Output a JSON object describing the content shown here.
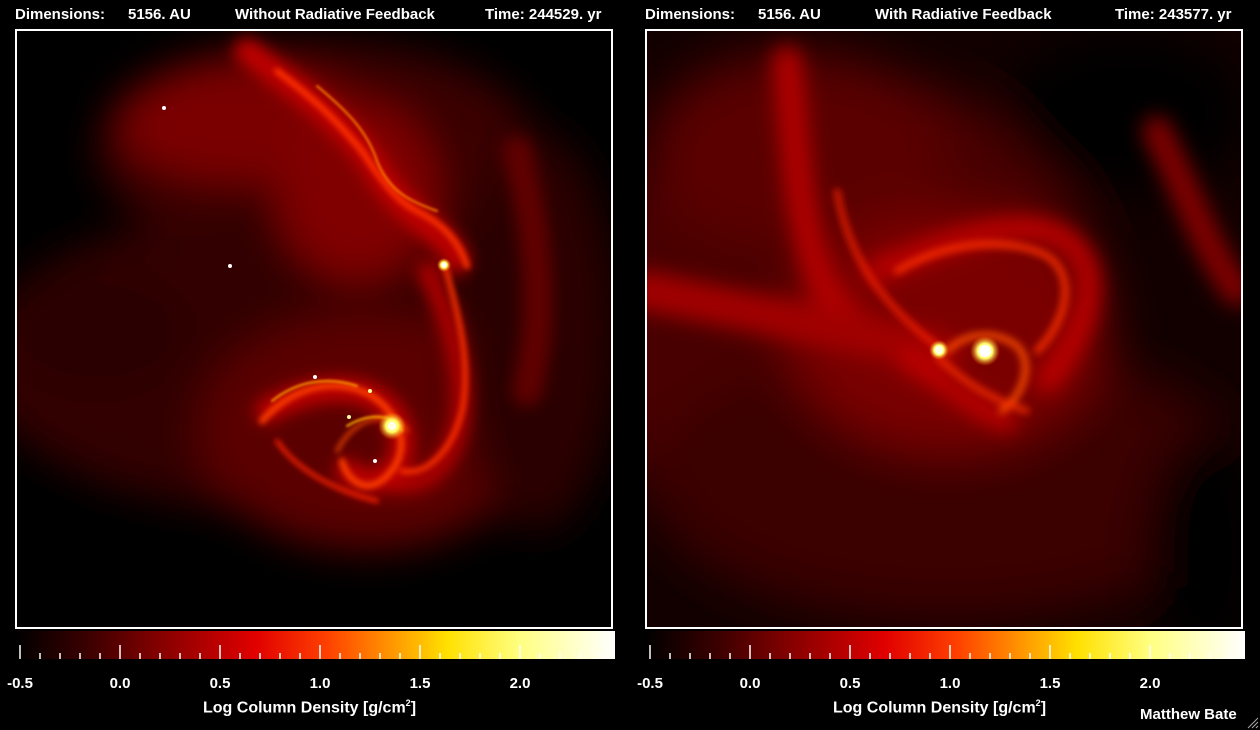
{
  "panels": [
    {
      "dimensions_label": "Dimensions:",
      "dimensions_value": "5156. AU",
      "title": "Without Radiative Feedback",
      "time": "Time: 244529. yr"
    },
    {
      "dimensions_label": "Dimensions:",
      "dimensions_value": "5156. AU",
      "title": "With Radiative Feedback",
      "time": "Time: 243577. yr"
    }
  ],
  "colorbar": {
    "ticks": [
      "-0.5",
      "0.0",
      "0.5",
      "1.0",
      "1.5",
      "2.0"
    ],
    "label_prefix": "Log Column Density [g/cm",
    "label_sup": "2",
    "label_suffix": "]",
    "colormap": [
      "#000000",
      "#8a0000",
      "#e00000",
      "#ff9000",
      "#ffe000",
      "#ffffff"
    ]
  },
  "credit": "Matthew Bate"
}
